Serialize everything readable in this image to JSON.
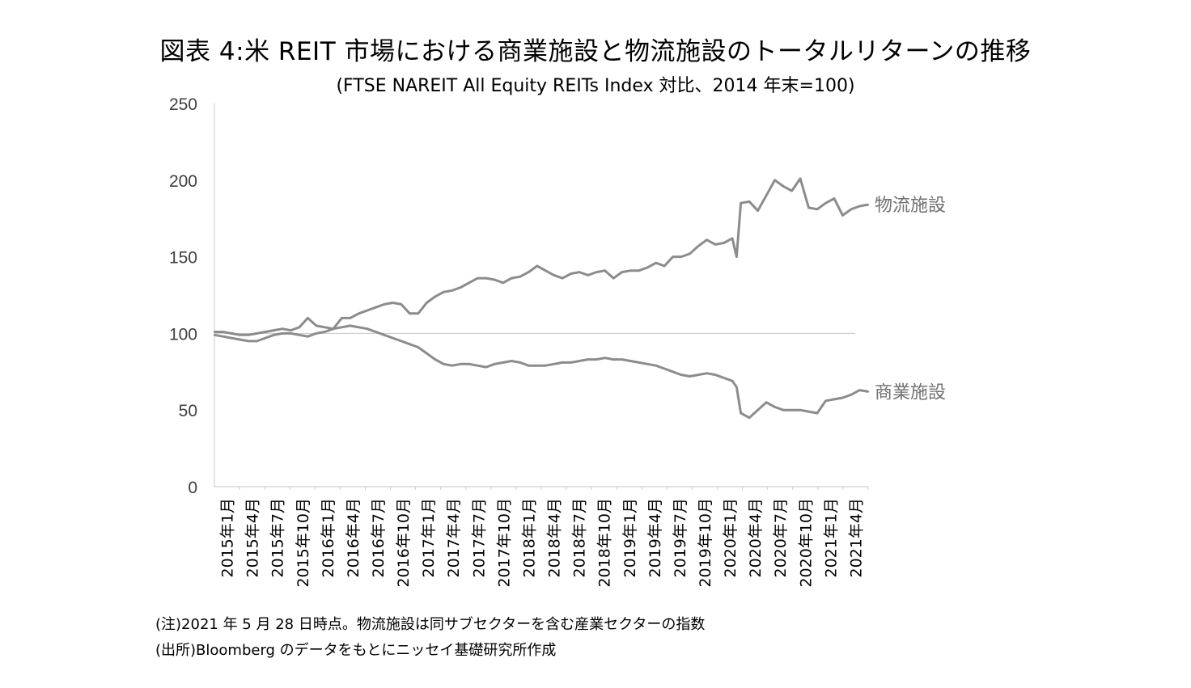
{
  "chart_data": {
    "type": "line",
    "title": "図表 4:米 REIT 市場における商業施設と物流施設のトータルリターンの推移",
    "subtitle": "(FTSE NAREIT All Equity REITs Index 対比、2014 年末=100)",
    "xlabel": "",
    "ylabel": "",
    "ylim": [
      0,
      250
    ],
    "yticks": [
      "0",
      "50",
      "100",
      "150",
      "200",
      "250"
    ],
    "x_range": [
      0,
      77
    ],
    "reference_line": 100,
    "grid": false,
    "legend": "inline labels at right end of each series",
    "categories": [
      "2015年1月",
      "2015年4月",
      "2015年7月",
      "2015年10月",
      "2016年1月",
      "2016年4月",
      "2016年7月",
      "2016年10月",
      "2017年1月",
      "2017年4月",
      "2017年7月",
      "2017年10月",
      "2018年1月",
      "2018年4月",
      "2018年7月",
      "2018年10月",
      "2019年1月",
      "2019年4月",
      "2019年7月",
      "2019年10月",
      "2020年1月",
      "2020年4月",
      "2020年7月",
      "2020年10月",
      "2021年1月",
      "2021年4月"
    ],
    "series": [
      {
        "name": "物流施設",
        "color": "#8c8c8c",
        "x": [
          0,
          1,
          2,
          3,
          4,
          5,
          6,
          7,
          8,
          9,
          10,
          11,
          12,
          13,
          14,
          15,
          16,
          17,
          18,
          19,
          20,
          21,
          22,
          23,
          24,
          25,
          26,
          27,
          28,
          29,
          30,
          31,
          32,
          33,
          34,
          35,
          36,
          37,
          38,
          39,
          40,
          41,
          42,
          43,
          44,
          45,
          46,
          47,
          48,
          49,
          50,
          51,
          52,
          53,
          54,
          55,
          56,
          57,
          58,
          59,
          60,
          61,
          61.5,
          62,
          63,
          64,
          65,
          66,
          67,
          68,
          69,
          70,
          71,
          72,
          73,
          74,
          75,
          76,
          77
        ],
        "values": [
          101,
          101,
          100,
          99,
          99,
          100,
          101,
          102,
          103,
          102,
          104,
          110,
          105,
          104,
          103,
          110,
          110,
          113,
          115,
          117,
          119,
          120,
          119,
          113,
          113,
          120,
          124,
          127,
          128,
          130,
          133,
          136,
          136,
          135,
          133,
          136,
          137,
          140,
          144,
          141,
          138,
          136,
          139,
          140,
          138,
          140,
          141,
          136,
          140,
          141,
          141,
          143,
          146,
          144,
          150,
          150,
          152,
          157,
          161,
          158,
          159,
          162,
          150,
          185,
          186,
          180,
          190,
          200,
          196,
          193,
          201,
          182,
          181,
          185,
          188,
          177,
          181,
          183,
          184
        ]
      },
      {
        "name": "商業施設",
        "color": "#8c8c8c",
        "x": [
          0,
          1,
          2,
          3,
          4,
          5,
          6,
          7,
          8,
          9,
          10,
          11,
          12,
          13,
          14,
          15,
          16,
          17,
          18,
          19,
          20,
          21,
          22,
          23,
          24,
          25,
          26,
          27,
          28,
          29,
          30,
          31,
          32,
          33,
          34,
          35,
          36,
          37,
          38,
          39,
          40,
          41,
          42,
          43,
          44,
          45,
          46,
          47,
          48,
          49,
          50,
          51,
          52,
          53,
          54,
          55,
          56,
          57,
          58,
          59,
          60,
          61,
          61.5,
          62,
          63,
          64,
          65,
          66,
          67,
          68,
          69,
          70,
          71,
          72,
          73,
          74,
          75,
          76,
          77
        ],
        "values": [
          99,
          98,
          97,
          96,
          95,
          95,
          97,
          99,
          100,
          100,
          99,
          98,
          100,
          101,
          103,
          104,
          105,
          104,
          103,
          101,
          99,
          97,
          95,
          93,
          91,
          87,
          83,
          80,
          79,
          80,
          80,
          79,
          78,
          80,
          81,
          82,
          81,
          79,
          79,
          79,
          80,
          81,
          81,
          82,
          83,
          83,
          84,
          83,
          83,
          82,
          81,
          80,
          79,
          77,
          75,
          73,
          72,
          73,
          74,
          73,
          71,
          69,
          65,
          48,
          45,
          50,
          55,
          52,
          50,
          50,
          50,
          49,
          48,
          56,
          57,
          58,
          60,
          63,
          62
        ]
      }
    ],
    "annotations": {
      "note": "(注)2021 年 5 月 28 日時点。物流施設は同サブセクターを含む産業セクターの指数",
      "source": "(出所)Bloomberg のデータをもとにニッセイ基礎研究所作成"
    }
  }
}
